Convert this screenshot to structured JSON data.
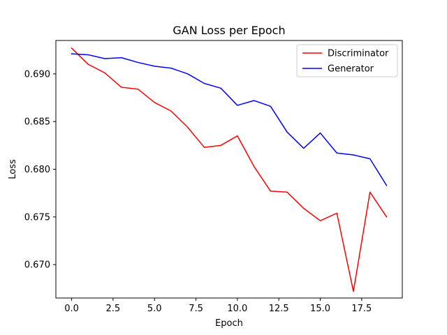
{
  "chart_data": {
    "type": "line",
    "title": "GAN Loss per Epoch",
    "xlabel": "Epoch",
    "ylabel": "Loss",
    "xlim": [
      -0.95,
      19.95
    ],
    "ylim": [
      0.6665,
      0.6935
    ],
    "xticks": [
      0.0,
      2.5,
      5.0,
      7.5,
      10.0,
      12.5,
      15.0,
      17.5
    ],
    "xtick_labels": [
      "0.0",
      "2.5",
      "5.0",
      "7.5",
      "10.0",
      "12.5",
      "15.0",
      "17.5"
    ],
    "yticks": [
      0.67,
      0.675,
      0.68,
      0.685,
      0.69
    ],
    "ytick_labels": [
      "0.670",
      "0.675",
      "0.680",
      "0.685",
      "0.690"
    ],
    "grid": false,
    "legend_position": "top-right",
    "x": [
      0,
      1,
      2,
      3,
      4,
      5,
      6,
      7,
      8,
      9,
      10,
      11,
      12,
      13,
      14,
      15,
      16,
      17,
      18,
      19
    ],
    "series": [
      {
        "name": "Discriminator",
        "color": "#ff0000",
        "values": [
          0.6927,
          0.691,
          0.6901,
          0.6886,
          0.6884,
          0.687,
          0.6861,
          0.6844,
          0.6823,
          0.6825,
          0.6835,
          0.6803,
          0.6777,
          0.6776,
          0.6759,
          0.6746,
          0.6754,
          0.6672,
          0.6776,
          0.675
        ]
      },
      {
        "name": "Generator",
        "color": "#0000ff",
        "values": [
          0.6921,
          0.692,
          0.6916,
          0.6917,
          0.6912,
          0.6908,
          0.6906,
          0.69,
          0.689,
          0.6885,
          0.6867,
          0.6872,
          0.6866,
          0.6839,
          0.6822,
          0.6838,
          0.6817,
          0.6815,
          0.6811,
          0.6783
        ]
      }
    ]
  }
}
